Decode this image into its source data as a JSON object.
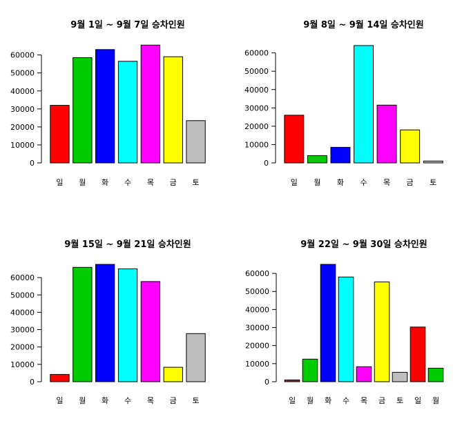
{
  "chart_data": [
    {
      "type": "bar",
      "title": "9월 1일 ~ 9월 7일 승차인원",
      "categories": [
        "일",
        "월",
        "화",
        "수",
        "목",
        "금",
        "토"
      ],
      "values": [
        32000,
        58500,
        63000,
        56500,
        65500,
        59000,
        23500
      ],
      "colors": [
        "#ff0000",
        "#00cd00",
        "#0000ff",
        "#00ffff",
        "#ff00ff",
        "#ffff00",
        "#bebebe"
      ],
      "yticks": [
        0,
        10000,
        20000,
        30000,
        40000,
        50000,
        60000
      ],
      "ylim": [
        0,
        66000
      ]
    },
    {
      "type": "bar",
      "title": "9월 8일 ~ 9월 14일 승차인원",
      "categories": [
        "일",
        "월",
        "화",
        "수",
        "목",
        "금",
        "토"
      ],
      "values": [
        26000,
        4000,
        8500,
        64000,
        31500,
        18000,
        1000
      ],
      "colors": [
        "#ff0000",
        "#00cd00",
        "#0000ff",
        "#00ffff",
        "#ff00ff",
        "#ffff00",
        "#bebebe"
      ],
      "yticks": [
        0,
        10000,
        20000,
        30000,
        40000,
        50000,
        60000
      ],
      "ylim": [
        0,
        64000
      ]
    },
    {
      "type": "bar",
      "title": "9월 15일 ~ 9월 21일 승차인원",
      "categories": [
        "일",
        "월",
        "화",
        "수",
        "목",
        "금",
        "토"
      ],
      "values": [
        4200,
        65900,
        67600,
        65000,
        57700,
        8300,
        27700
      ],
      "colors": [
        "#ff0000",
        "#00cd00",
        "#0000ff",
        "#00ffff",
        "#ff00ff",
        "#ffff00",
        "#bebebe"
      ],
      "yticks": [
        0,
        10000,
        20000,
        30000,
        40000,
        50000,
        60000
      ],
      "ylim": [
        0,
        67600
      ]
    },
    {
      "type": "bar",
      "title": "9월 22일 ~ 9월 30일 승차인원",
      "categories": [
        "일",
        "월",
        "화",
        "수",
        "목",
        "금",
        "토",
        "일",
        "월"
      ],
      "values": [
        1000,
        12500,
        65000,
        58000,
        8300,
        55300,
        5200,
        30300,
        7500
      ],
      "colors": [
        "#b22222",
        "#00cd00",
        "#0000ff",
        "#00ffff",
        "#ff00ff",
        "#ffff00",
        "#bebebe",
        "#ff0000",
        "#00cd00"
      ],
      "yticks": [
        0,
        10000,
        20000,
        30000,
        40000,
        50000,
        60000
      ],
      "ylim": [
        0,
        65000
      ]
    }
  ]
}
